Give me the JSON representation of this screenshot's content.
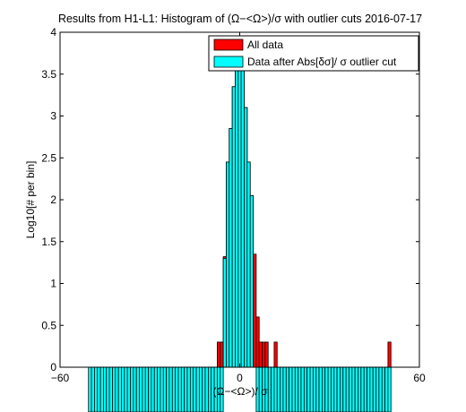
{
  "chart_data": {
    "type": "bar",
    "title": "Results from H1-L1: Histogram of (Ω−<Ω>)/σ with outlier cuts 2016-07-17",
    "xlabel": "(Ω−<Ω>)/ σ",
    "ylabel": "Log10[# per bin]",
    "xlim": [
      -60,
      60
    ],
    "ylim": [
      0,
      4
    ],
    "xticks": [
      "−60",
      "0",
      "60"
    ],
    "yticks": [
      "0",
      "0.5",
      "1",
      "1.5",
      "2",
      "2.5",
      "3",
      "3.5",
      "4"
    ],
    "grid": false,
    "legend_position": "top-right",
    "bin_width": 1,
    "colors": {
      "all_data": "#ff0000",
      "after_cut": "#00ffff",
      "edge": "#000000"
    },
    "series": [
      {
        "name": "All data",
        "x": [
          -7,
          -6,
          -5,
          -4,
          -3,
          -2,
          -1,
          0,
          1,
          2,
          3,
          4,
          5,
          6,
          7,
          8,
          9,
          12,
          50
        ],
        "values": [
          0.3,
          0.3,
          1.32,
          2.45,
          2.85,
          3.35,
          3.75,
          3.95,
          3.6,
          3.1,
          2.45,
          2.05,
          1.35,
          0.6,
          0.3,
          0.3,
          0.3,
          0.3,
          0.3
        ]
      },
      {
        "name": "Data after Abs[δσ]/ σ outlier cut",
        "x": [
          -5,
          -4,
          -3,
          -2,
          -1,
          0,
          1,
          2,
          3,
          4
        ],
        "values": [
          1.3,
          2.45,
          2.85,
          3.35,
          3.75,
          3.95,
          3.6,
          3.1,
          2.45,
          2.05
        ]
      }
    ],
    "below_axis_cyan_bins": [
      -50,
      -49,
      -48,
      -47,
      -46,
      -45,
      -44,
      -43,
      -42,
      -41,
      -40,
      -39,
      -38,
      -37,
      -36,
      -35,
      -34,
      -33,
      -32,
      -31,
      -30,
      -29,
      -28,
      -27,
      -26,
      -25,
      -24,
      -23,
      -22,
      -21,
      -20,
      -19,
      -18,
      -17,
      -16,
      -15,
      -14,
      -13,
      -12,
      -11,
      -10,
      -9,
      -8,
      -7,
      -6,
      6,
      7,
      8,
      9,
      10,
      11,
      12,
      13,
      14,
      15,
      16,
      17,
      18,
      19,
      20,
      21,
      22,
      23,
      24,
      25,
      26,
      27,
      28,
      29,
      30,
      31,
      32,
      33,
      34,
      35,
      36,
      37,
      38,
      39,
      40,
      41,
      42,
      43,
      44,
      45,
      46,
      47,
      48,
      49,
      50
    ]
  }
}
